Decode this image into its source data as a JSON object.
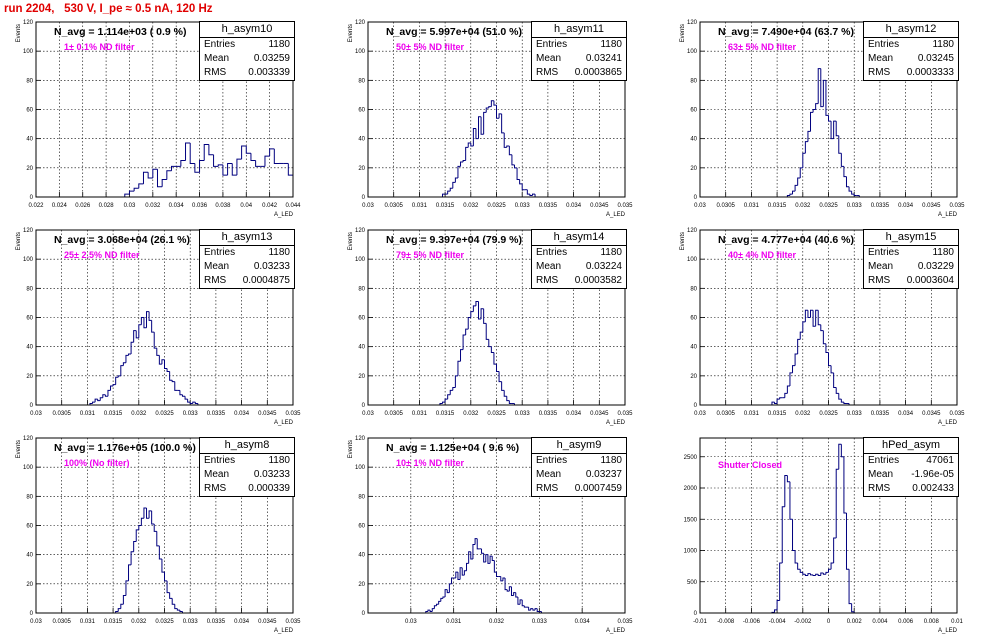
{
  "page_title": "run 2204,   530 V, I_pe ≈ 0.5 nA, 120 Hz",
  "stat_labels": {
    "entries": "Entries",
    "mean": "Mean",
    "rms": "RMS"
  },
  "colors": {
    "title": "#e00000",
    "histogram": "#00007f",
    "annotation": "#ee00ee",
    "grid": "#000000"
  },
  "chart_data": [
    {
      "type": "histogram",
      "name": "h_asym10",
      "navg_label": "N_avg = 1.114e+03 ( 0.9 %)",
      "filter_label": "1± 0.1% ND filter",
      "stats": {
        "entries": "1180",
        "mean": "0.03259",
        "rms": "0.003339"
      },
      "xlabel": "A_LED",
      "ylabel": "Events",
      "xlim": [
        0.022,
        0.044
      ],
      "ylim": [
        0,
        120
      ],
      "xticks": [
        "0.022",
        "0.024",
        "0.026",
        "0.028",
        "0.03",
        "0.032",
        "0.034",
        "0.036",
        "0.038",
        "0.04",
        "0.042",
        "0.044"
      ],
      "yticks": [
        "0",
        "20",
        "40",
        "60",
        "80",
        "100",
        "120"
      ],
      "bin_start": 0.022,
      "bin_width": 0.0004,
      "counts": [
        0,
        0,
        0,
        0,
        0,
        0,
        0,
        0,
        0,
        0,
        0,
        0,
        0,
        0,
        0,
        0,
        0,
        0,
        0,
        2,
        4,
        6,
        9,
        17,
        13,
        19,
        7,
        12,
        18,
        21,
        21,
        25,
        37,
        23,
        17,
        25,
        36,
        29,
        21,
        22,
        15,
        23,
        15,
        26,
        35,
        30,
        25,
        21,
        21,
        28,
        33,
        23,
        23,
        23,
        15,
        12,
        8,
        8,
        3,
        1,
        2,
        2,
        0,
        0,
        0
      ]
    },
    {
      "type": "histogram",
      "name": "h_asym11",
      "navg_label": "N_avg = 5.997e+04 (51.0 %)",
      "filter_label": "50± 5% ND filter",
      "stats": {
        "entries": "1180",
        "mean": "0.03241",
        "rms": "0.0003865"
      },
      "xlabel": "A_LED",
      "ylabel": "Events",
      "xlim": [
        0.03,
        0.035
      ],
      "ylim": [
        0,
        120
      ],
      "xticks": [
        "0.03",
        "0.0305",
        "0.031",
        "0.0315",
        "0.032",
        "0.0325",
        "0.033",
        "0.0335",
        "0.034",
        "0.0345",
        "0.035"
      ],
      "yticks": [
        "0",
        "20",
        "40",
        "60",
        "80",
        "100",
        "120"
      ],
      "bin_start": 0.03,
      "bin_width": 5e-05,
      "counts": [
        0,
        0,
        0,
        0,
        0,
        0,
        0,
        0,
        0,
        0,
        0,
        0,
        0,
        0,
        0,
        0,
        0,
        0,
        0,
        0,
        0,
        0,
        0,
        0,
        0,
        0,
        0,
        0,
        0,
        2,
        2,
        4,
        6,
        10,
        13,
        21,
        24,
        25,
        34,
        37,
        35,
        47,
        40,
        55,
        43,
        58,
        61,
        62,
        66,
        63,
        54,
        57,
        44,
        34,
        35,
        29,
        22,
        20,
        12,
        9,
        5,
        5,
        2,
        1,
        2,
        0,
        0,
        0,
        0,
        0,
        0,
        0,
        0,
        0,
        0,
        0,
        0,
        0,
        0,
        0,
        0,
        0,
        0,
        0,
        0,
        0,
        0,
        0,
        0,
        0,
        0,
        0,
        0,
        0,
        0,
        0,
        0,
        0,
        0,
        0
      ]
    },
    {
      "type": "histogram",
      "name": "h_asym12",
      "navg_label": "N_avg = 7.490e+04 (63.7 %)",
      "filter_label": "63± 5% ND filter",
      "stats": {
        "entries": "1180",
        "mean": "0.03245",
        "rms": "0.0003333"
      },
      "xlabel": "A_LED",
      "ylabel": "Events",
      "xlim": [
        0.03,
        0.035
      ],
      "ylim": [
        0,
        120
      ],
      "xticks": [
        "0.03",
        "0.0305",
        "0.031",
        "0.0315",
        "0.032",
        "0.0325",
        "0.033",
        "0.0335",
        "0.034",
        "0.0345",
        "0.035"
      ],
      "yticks": [
        "0",
        "20",
        "40",
        "60",
        "80",
        "100",
        "120"
      ],
      "bin_start": 0.03,
      "bin_width": 5e-05,
      "counts": [
        0,
        0,
        0,
        0,
        0,
        0,
        0,
        0,
        0,
        0,
        0,
        0,
        0,
        0,
        0,
        0,
        0,
        0,
        0,
        0,
        0,
        0,
        0,
        0,
        0,
        0,
        0,
        0,
        0,
        0,
        0,
        0,
        0,
        0,
        1,
        2,
        4,
        8,
        13,
        20,
        30,
        38,
        45,
        58,
        60,
        64,
        88,
        62,
        80,
        56,
        52,
        40,
        52,
        42,
        30,
        21,
        14,
        7,
        4,
        2,
        1,
        1,
        0,
        0,
        0,
        0,
        0,
        0,
        0,
        0,
        0,
        0,
        0,
        0,
        0,
        0,
        0,
        0,
        0,
        0,
        0,
        0,
        0,
        0,
        0,
        0,
        0,
        0,
        0,
        0,
        0,
        0,
        0,
        0,
        0,
        0,
        0,
        0,
        0,
        0
      ]
    },
    {
      "type": "histogram",
      "name": "h_asym13",
      "navg_label": "N_avg = 3.068e+04 (26.1 %)",
      "filter_label": "25± 2.5% ND filter",
      "stats": {
        "entries": "1180",
        "mean": "0.03233",
        "rms": "0.0004875"
      },
      "xlabel": "A_LED",
      "ylabel": "Events",
      "xlim": [
        0.03,
        0.035
      ],
      "ylim": [
        0,
        120
      ],
      "xticks": [
        "0.03",
        "0.0305",
        "0.031",
        "0.0315",
        "0.032",
        "0.0325",
        "0.033",
        "0.0335",
        "0.034",
        "0.0345",
        "0.035"
      ],
      "yticks": [
        "0",
        "20",
        "40",
        "60",
        "80",
        "100",
        "120"
      ],
      "bin_start": 0.03,
      "bin_width": 5e-05,
      "counts": [
        0,
        0,
        0,
        0,
        0,
        0,
        0,
        0,
        0,
        0,
        0,
        0,
        0,
        0,
        0,
        0,
        0,
        0,
        0,
        0,
        0,
        1,
        2,
        4,
        3,
        5,
        7,
        6,
        10,
        13,
        14,
        19,
        20,
        27,
        29,
        34,
        35,
        43,
        51,
        46,
        55,
        60,
        53,
        64,
        58,
        50,
        39,
        34,
        28,
        31,
        25,
        23,
        17,
        16,
        10,
        10,
        7,
        6,
        4,
        2,
        1,
        2,
        1,
        0,
        0,
        0,
        0,
        0,
        0,
        0,
        0,
        0,
        0,
        0,
        0,
        0,
        0,
        0,
        0,
        0,
        0,
        0,
        0,
        0,
        0,
        0,
        0,
        0,
        0,
        0,
        0,
        0,
        0,
        0,
        0,
        0,
        0,
        0,
        0,
        0
      ]
    },
    {
      "type": "histogram",
      "name": "h_asym14",
      "navg_label": "N_avg = 9.397e+04 (79.9 %)",
      "filter_label": "79± 5% ND filter",
      "stats": {
        "entries": "1180",
        "mean": "0.03224",
        "rms": "0.0003582"
      },
      "xlabel": "A_LED",
      "ylabel": "Events",
      "xlim": [
        0.03,
        0.035
      ],
      "ylim": [
        0,
        120
      ],
      "xticks": [
        "0.03",
        "0.0305",
        "0.031",
        "0.0315",
        "0.032",
        "0.0325",
        "0.033",
        "0.0335",
        "0.034",
        "0.0345",
        "0.035"
      ],
      "yticks": [
        "0",
        "20",
        "40",
        "60",
        "80",
        "100",
        "120"
      ],
      "bin_start": 0.03,
      "bin_width": 5e-05,
      "counts": [
        0,
        0,
        0,
        0,
        0,
        0,
        0,
        0,
        0,
        0,
        0,
        0,
        0,
        0,
        0,
        0,
        0,
        0,
        0,
        0,
        0,
        0,
        0,
        0,
        0,
        0,
        0,
        0,
        1,
        2,
        4,
        7,
        10,
        12,
        20,
        30,
        38,
        48,
        52,
        60,
        64,
        68,
        71,
        59,
        66,
        56,
        45,
        40,
        36,
        28,
        23,
        16,
        10,
        6,
        3,
        1,
        1,
        0,
        0,
        0,
        0,
        0,
        0,
        0,
        0,
        0,
        0,
        0,
        0,
        0,
        0,
        0,
        0,
        0,
        0,
        0,
        0,
        0,
        0,
        0,
        0,
        0,
        0,
        0,
        0,
        0,
        0,
        0,
        0,
        0,
        0,
        0,
        0,
        0,
        0,
        0,
        0,
        0,
        0,
        0
      ]
    },
    {
      "type": "histogram",
      "name": "h_asym15",
      "navg_label": "N_avg = 4.777e+04 (40.6 %)",
      "filter_label": "40± 4% ND filter",
      "stats": {
        "entries": "1180",
        "mean": "0.03229",
        "rms": "0.0003604"
      },
      "xlabel": "A_LED",
      "ylabel": "Events",
      "xlim": [
        0.03,
        0.035
      ],
      "ylim": [
        0,
        120
      ],
      "xticks": [
        "0.03",
        "0.0305",
        "0.031",
        "0.0315",
        "0.032",
        "0.0325",
        "0.033",
        "0.0335",
        "0.034",
        "0.0345",
        "0.035"
      ],
      "yticks": [
        "0",
        "20",
        "40",
        "60",
        "80",
        "100",
        "120"
      ],
      "bin_start": 0.03,
      "bin_width": 5e-05,
      "counts": [
        0,
        0,
        0,
        0,
        0,
        0,
        0,
        0,
        0,
        0,
        0,
        0,
        0,
        0,
        0,
        0,
        0,
        0,
        0,
        0,
        0,
        0,
        0,
        0,
        0,
        0,
        0,
        0,
        2,
        1,
        4,
        5,
        5,
        8,
        13,
        22,
        27,
        35,
        45,
        50,
        57,
        65,
        60,
        65,
        54,
        65,
        55,
        51,
        42,
        36,
        27,
        22,
        12,
        8,
        4,
        2,
        1,
        1,
        0,
        0,
        0,
        0,
        0,
        0,
        0,
        0,
        0,
        0,
        0,
        0,
        0,
        0,
        0,
        0,
        0,
        0,
        0,
        0,
        0,
        0,
        0,
        0,
        0,
        0,
        0,
        0,
        0,
        0,
        0,
        0,
        0,
        0,
        0,
        0,
        0,
        0,
        0,
        0,
        0,
        0
      ]
    },
    {
      "type": "histogram",
      "name": "h_asym8",
      "navg_label": "N_avg = 1.176e+05 (100.0 %)",
      "filter_label": "100% (No filter)",
      "stats": {
        "entries": "1180",
        "mean": "0.03233",
        "rms": "0.000339"
      },
      "xlabel": "A_LED",
      "ylabel": "Events",
      "xlim": [
        0.03,
        0.035
      ],
      "ylim": [
        0,
        120
      ],
      "xticks": [
        "0.03",
        "0.0305",
        "0.031",
        "0.0315",
        "0.032",
        "0.0325",
        "0.033",
        "0.0335",
        "0.034",
        "0.0345",
        "0.035"
      ],
      "yticks": [
        "0",
        "20",
        "40",
        "60",
        "80",
        "100",
        "120"
      ],
      "bin_start": 0.03,
      "bin_width": 5e-05,
      "counts": [
        0,
        0,
        0,
        0,
        0,
        0,
        0,
        0,
        0,
        0,
        0,
        0,
        0,
        0,
        0,
        0,
        0,
        0,
        0,
        0,
        0,
        0,
        0,
        0,
        0,
        0,
        0,
        0,
        0,
        0,
        0,
        1,
        3,
        6,
        12,
        22,
        33,
        42,
        49,
        57,
        60,
        65,
        72,
        65,
        70,
        61,
        56,
        46,
        37,
        28,
        22,
        14,
        10,
        6,
        3,
        2,
        1,
        0,
        0,
        0,
        0,
        0,
        0,
        0,
        0,
        0,
        0,
        0,
        0,
        0,
        0,
        0,
        0,
        0,
        0,
        0,
        0,
        0,
        0,
        0,
        0,
        0,
        0,
        0,
        0,
        0,
        0,
        0,
        0,
        0,
        0,
        0,
        0,
        0,
        0,
        0,
        0,
        0,
        0,
        0
      ]
    },
    {
      "type": "histogram",
      "name": "h_asym9",
      "navg_label": "N_avg = 1.125e+04 ( 9.6 %)",
      "filter_label": "10± 1% ND filter",
      "stats": {
        "entries": "1180",
        "mean": "0.03237",
        "rms": "0.0007459"
      },
      "xlabel": "A_LED",
      "ylabel": "Events",
      "xlim": [
        0.029,
        0.035
      ],
      "ylim": [
        0,
        120
      ],
      "xticks": [
        "0.03",
        "0.031",
        "0.032",
        "0.033",
        "0.034",
        "0.035"
      ],
      "yticks": [
        "0",
        "20",
        "40",
        "60",
        "80",
        "100",
        "120"
      ],
      "bin_start": 0.029,
      "bin_width": 5e-05,
      "counts": [
        0,
        0,
        0,
        0,
        0,
        0,
        0,
        0,
        0,
        0,
        0,
        0,
        0,
        0,
        0,
        0,
        0,
        0,
        0,
        0,
        0,
        0,
        0,
        0,
        0,
        0,
        0,
        1,
        2,
        1,
        3,
        5,
        6,
        8,
        10,
        11,
        16,
        14,
        20,
        24,
        24,
        28,
        23,
        31,
        26,
        29,
        34,
        42,
        37,
        47,
        51,
        44,
        44,
        41,
        35,
        40,
        34,
        39,
        36,
        28,
        25,
        25,
        22,
        24,
        16,
        15,
        18,
        12,
        14,
        11,
        6,
        9,
        5,
        4,
        4,
        2,
        3,
        2,
        3,
        1,
        1,
        0,
        0,
        0,
        0,
        0,
        0,
        0,
        0,
        0,
        0,
        0,
        0,
        0,
        0,
        0,
        0,
        0,
        0,
        0,
        0,
        0,
        0,
        0,
        0,
        0,
        0,
        0,
        0,
        0,
        0,
        0,
        0,
        0,
        0,
        0,
        0,
        0,
        0,
        0
      ]
    },
    {
      "type": "histogram",
      "name": "hPed_asym",
      "navg_label": "",
      "filter_label": "Shutter Closed",
      "stats": {
        "entries": "47061",
        "mean": "-1.96e-05",
        "rms": "0.002433"
      },
      "xlabel": "A_LED",
      "ylabel": "",
      "xlim": [
        -0.01,
        0.01
      ],
      "ylim": [
        0,
        2800
      ],
      "xticks": [
        "-0.01",
        "-0.008",
        "-0.006",
        "-0.004",
        "-0.002",
        "0",
        "0.002",
        "0.004",
        "0.006",
        "0.008",
        "0.01"
      ],
      "yticks": [
        "0",
        "500",
        "1000",
        "1500",
        "2000",
        "2500"
      ],
      "bin_start": -0.01,
      "bin_width": 0.0002,
      "counts": [
        0,
        0,
        0,
        0,
        0,
        0,
        0,
        0,
        0,
        0,
        0,
        0,
        0,
        0,
        0,
        0,
        0,
        0,
        0,
        0,
        0,
        0,
        0,
        0,
        0,
        0,
        0,
        0,
        10,
        50,
        200,
        800,
        1700,
        2200,
        2100,
        1500,
        1000,
        800,
        700,
        650,
        620,
        600,
        630,
        610,
        600,
        620,
        600,
        640,
        620,
        650,
        700,
        800,
        1200,
        2300,
        2700,
        2500,
        1600,
        700,
        150,
        20,
        0,
        0,
        0,
        0,
        0,
        0,
        0,
        0,
        0,
        0,
        0,
        0,
        0,
        0,
        0,
        0,
        0,
        0,
        0,
        0,
        0,
        0,
        0,
        0,
        0,
        0,
        0,
        0,
        0,
        0,
        0,
        0,
        0,
        0,
        0,
        0,
        0,
        0,
        0,
        0
      ]
    }
  ]
}
